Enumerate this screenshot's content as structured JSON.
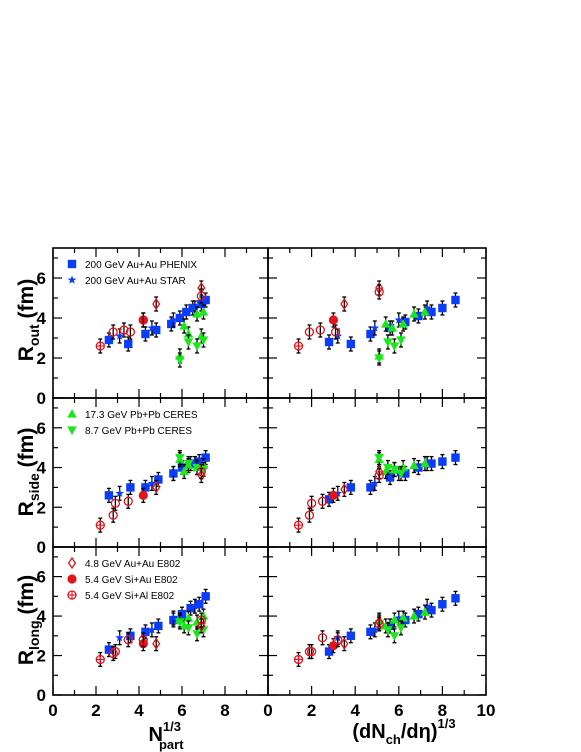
{
  "figure": {
    "x_axis_titles": [
      {
        "main": "N",
        "sub": "part",
        "sup": "1/3"
      },
      {
        "main": "(dN",
        "sub": "ch",
        "tail": "/dη)",
        "sup": "1/3"
      }
    ],
    "row_titles": [
      {
        "main": "R",
        "sub": "out",
        "tail": " (fm)"
      },
      {
        "main": "R",
        "sub": "side",
        "tail": " (fm)"
      },
      {
        "main": "R",
        "sub": "long",
        "tail": " (fm)"
      }
    ]
  },
  "chart_data": {
    "type": "scatter",
    "layout": "3 rows x 2 columns, shared axes",
    "x_axes": [
      {
        "label": "N_part^1/3",
        "lim": [
          0,
          10
        ],
        "ticks": [
          0,
          2,
          4,
          6,
          8
        ]
      },
      {
        "label": "(dN_ch/dη)^1/3",
        "lim": [
          0,
          10
        ],
        "ticks": [
          0,
          2,
          4,
          6,
          8,
          10
        ]
      }
    ],
    "y_axis": {
      "lim": [
        0,
        7.5
      ],
      "ticks": [
        0,
        2,
        4,
        6
      ]
    },
    "legends": [
      {
        "row": 0,
        "entries": [
          "200 GeV Au+Au PHENIX",
          "200 GeV Au+Au STAR"
        ]
      },
      {
        "row": 1,
        "entries": [
          "17.3 GeV Pb+Pb CERES",
          "8.7 GeV Pb+Pb CERES"
        ]
      },
      {
        "row": 2,
        "entries": [
          "4.8 GeV Au+Au E802",
          "5.4 GeV Si+Au  E802",
          "5.4 GeV Si+Al   E802"
        ]
      }
    ],
    "series": [
      {
        "name": "200 GeV Au+Au PHENIX",
        "marker": "square",
        "color": "#0a3df5",
        "col0": [
          [
            [
              2.6,
              2.9
            ],
            [
              3.5,
              2.7
            ],
            [
              4.3,
              3.2
            ],
            [
              4.8,
              3.4
            ],
            [
              5.5,
              3.7
            ],
            [
              5.9,
              4.0
            ],
            [
              6.2,
              4.3
            ],
            [
              6.5,
              4.5
            ],
            [
              6.9,
              4.7
            ],
            [
              7.1,
              4.9
            ]
          ],
          [
            [
              2.6,
              2.6
            ],
            [
              3.6,
              3.0
            ],
            [
              4.3,
              3.0
            ],
            [
              4.9,
              3.4
            ],
            [
              5.6,
              3.7
            ],
            [
              6.0,
              4.0
            ],
            [
              6.4,
              4.2
            ],
            [
              6.8,
              4.3
            ],
            [
              7.1,
              4.5
            ]
          ],
          [
            [
              2.6,
              2.3
            ],
            [
              3.6,
              3.0
            ],
            [
              4.3,
              3.2
            ],
            [
              4.9,
              3.5
            ],
            [
              5.6,
              3.8
            ],
            [
              6.0,
              4.1
            ],
            [
              6.4,
              4.4
            ],
            [
              6.8,
              4.6
            ],
            [
              7.1,
              5.0
            ]
          ]
        ],
        "col1": [
          [
            [
              2.8,
              2.8
            ],
            [
              3.8,
              2.7
            ],
            [
              4.7,
              3.2
            ],
            [
              5.6,
              3.5
            ],
            [
              6.3,
              3.8
            ],
            [
              6.9,
              4.1
            ],
            [
              7.5,
              4.3
            ],
            [
              8.0,
              4.5
            ],
            [
              8.6,
              4.9
            ]
          ],
          [
            [
              2.8,
              2.4
            ],
            [
              3.8,
              3.0
            ],
            [
              4.7,
              3.0
            ],
            [
              5.6,
              3.5
            ],
            [
              6.3,
              3.7
            ],
            [
              6.9,
              4.0
            ],
            [
              7.5,
              4.2
            ],
            [
              8.0,
              4.3
            ],
            [
              8.6,
              4.5
            ]
          ],
          [
            [
              2.8,
              2.2
            ],
            [
              3.8,
              3.0
            ],
            [
              4.7,
              3.2
            ],
            [
              5.6,
              3.5
            ],
            [
              6.3,
              3.8
            ],
            [
              6.9,
              4.1
            ],
            [
              7.5,
              4.3
            ],
            [
              8.0,
              4.6
            ],
            [
              8.6,
              4.9
            ]
          ]
        ]
      },
      {
        "name": "200 GeV Au+Au STAR",
        "marker": "star",
        "color": "#0a3df5",
        "col0": [
          [
            [
              3.1,
              3.1
            ],
            [
              4.6,
              3.5
            ],
            [
              5.6,
              3.9
            ],
            [
              6.6,
              4.5
            ]
          ],
          [
            [
              3.1,
              2.7
            ],
            [
              4.6,
              3.2
            ],
            [
              5.6,
              3.7
            ],
            [
              6.6,
              4.2
            ]
          ],
          [
            [
              3.1,
              2.9
            ],
            [
              4.6,
              3.3
            ],
            [
              5.6,
              3.9
            ],
            [
              6.6,
              4.5
            ]
          ]
        ],
        "col1": [
          [
            [
              3.2,
              3.1
            ],
            [
              4.9,
              3.5
            ],
            [
              6.0,
              3.9
            ],
            [
              7.3,
              4.5
            ]
          ],
          [
            [
              3.2,
              2.7
            ],
            [
              4.9,
              3.2
            ],
            [
              6.0,
              3.7
            ],
            [
              7.3,
              4.2
            ]
          ],
          [
            [
              3.2,
              2.9
            ],
            [
              4.9,
              3.3
            ],
            [
              6.0,
              3.9
            ],
            [
              7.3,
              4.5
            ]
          ]
        ]
      },
      {
        "name": "17.3 GeV Pb+Pb CERES",
        "marker": "triangle-up",
        "color": "#1ee61e",
        "col0": [
          [
            [
              5.9,
              2.1
            ],
            [
              6.1,
              3.6
            ],
            [
              6.3,
              3.2
            ],
            [
              6.7,
              4.2
            ],
            [
              6.9,
              3.1
            ],
            [
              7.0,
              4.3
            ]
          ],
          [
            [
              5.9,
              4.4
            ],
            [
              6.1,
              3.8
            ],
            [
              6.3,
              4.1
            ],
            [
              6.7,
              4.0
            ],
            [
              7.0,
              4.1
            ]
          ],
          [
            [
              5.9,
              3.8
            ],
            [
              6.1,
              3.5
            ],
            [
              6.3,
              3.9
            ],
            [
              6.7,
              3.7
            ],
            [
              7.0,
              4.0
            ]
          ]
        ],
        "col1": [
          [
            [
              5.1,
              2.1
            ],
            [
              5.4,
              3.7
            ],
            [
              5.7,
              3.5
            ],
            [
              6.2,
              3.7
            ],
            [
              6.7,
              4.2
            ],
            [
              7.2,
              4.3
            ]
          ],
          [
            [
              5.1,
              4.4
            ],
            [
              5.4,
              3.8
            ],
            [
              5.8,
              3.9
            ],
            [
              6.2,
              4.0
            ],
            [
              6.7,
              4.1
            ],
            [
              7.2,
              4.2
            ]
          ],
          [
            [
              5.1,
              3.8
            ],
            [
              5.4,
              3.5
            ],
            [
              5.8,
              3.8
            ],
            [
              6.2,
              3.9
            ],
            [
              6.7,
              4.0
            ],
            [
              7.2,
              4.2
            ]
          ]
        ]
      },
      {
        "name": "8.7 GeV Pb+Pb CERES",
        "marker": "triangle-down",
        "color": "#1ee61e",
        "col0": [
          [
            [
              5.9,
              1.9
            ],
            [
              6.3,
              2.8
            ],
            [
              6.7,
              2.6
            ],
            [
              7.0,
              2.9
            ]
          ],
          [
            [
              5.9,
              4.5
            ],
            [
              6.3,
              4.2
            ],
            [
              6.7,
              4.0
            ],
            [
              7.0,
              3.9
            ]
          ],
          [
            [
              5.9,
              3.7
            ],
            [
              6.3,
              3.4
            ],
            [
              6.7,
              3.1
            ],
            [
              7.0,
              3.3
            ]
          ]
        ],
        "col1": [
          [
            [
              5.1,
              2.0
            ],
            [
              5.5,
              2.8
            ],
            [
              5.8,
              2.6
            ],
            [
              6.1,
              2.9
            ]
          ],
          [
            [
              5.1,
              4.5
            ],
            [
              5.5,
              4.0
            ],
            [
              5.8,
              3.9
            ],
            [
              6.1,
              3.7
            ]
          ],
          [
            [
              5.1,
              3.6
            ],
            [
              5.5,
              3.3
            ],
            [
              5.8,
              3.0
            ],
            [
              6.1,
              3.4
            ]
          ]
        ]
      },
      {
        "name": "4.8 GeV Au+Au E802",
        "marker": "diamond-open",
        "color": "#e0141e",
        "col0": [
          [
            [
              4.8,
              4.7
            ],
            [
              6.9,
              5.5
            ]
          ],
          [
            [
              4.8,
              3.0
            ],
            [
              6.9,
              3.6
            ]
          ],
          [
            [
              4.8,
              2.6
            ],
            [
              6.9,
              3.5
            ]
          ]
        ],
        "col1": [
          [
            [
              3.5,
              4.7
            ],
            [
              5.1,
              5.5
            ]
          ],
          [
            [
              3.5,
              2.9
            ],
            [
              5.1,
              3.8
            ]
          ],
          [
            [
              3.5,
              2.6
            ],
            [
              5.1,
              3.7
            ]
          ]
        ]
      },
      {
        "name": "5.4 GeV Si+Au  E802",
        "marker": "circle",
        "color": "#e0141e",
        "col0": [
          [
            [
              4.2,
              3.9
            ]
          ],
          [
            [
              4.2,
              2.6
            ]
          ],
          [
            [
              4.2,
              2.6
            ]
          ]
        ],
        "col1": [
          [
            [
              3.0,
              3.9
            ]
          ],
          [
            [
              3.0,
              2.6
            ]
          ],
          [
            [
              3.0,
              2.5
            ]
          ]
        ]
      },
      {
        "name": "5.4 GeV Si+Al   E802",
        "marker": "circle-cross-open",
        "color": "#e0141e",
        "col0": [
          [
            [
              2.2,
              2.6
            ]
          ],
          [
            [
              2.2,
              1.1
            ]
          ],
          [
            [
              2.2,
              1.8
            ]
          ]
        ],
        "col1": [
          [
            [
              1.4,
              2.6
            ]
          ],
          [
            [
              1.4,
              1.1
            ]
          ],
          [
            [
              1.4,
              1.8
            ]
          ]
        ]
      },
      {
        "name": "",
        "marker": "circle-open",
        "color": "#e0141e",
        "col0": [
          [
            [
              2.8,
              3.3
            ],
            [
              3.3,
              3.4
            ],
            [
              3.6,
              3.3
            ],
            [
              4.2,
              3.9
            ],
            [
              6.9,
              5.1
            ]
          ],
          [
            [
              2.8,
              1.6
            ],
            [
              2.9,
              2.2
            ],
            [
              3.5,
              2.3
            ],
            [
              6.9,
              3.8
            ]
          ],
          [
            [
              2.8,
              2.1
            ],
            [
              2.9,
              2.2
            ],
            [
              3.5,
              2.8
            ],
            [
              4.2,
              2.8
            ],
            [
              6.9,
              3.8
            ]
          ]
        ],
        "col1": [
          [
            [
              1.9,
              3.3
            ],
            [
              2.4,
              3.4
            ],
            [
              3.1,
              3.3
            ],
            [
              5.1,
              5.3
            ]
          ],
          [
            [
              1.9,
              1.6
            ],
            [
              2.0,
              2.2
            ],
            [
              2.5,
              2.3
            ],
            [
              5.1,
              3.6
            ]
          ],
          [
            [
              1.9,
              2.2
            ],
            [
              2.0,
              2.2
            ],
            [
              2.5,
              2.9
            ],
            [
              3.2,
              2.8
            ],
            [
              5.1,
              3.6
            ]
          ]
        ]
      }
    ],
    "error_bar_half_width_fm": 0.35
  }
}
